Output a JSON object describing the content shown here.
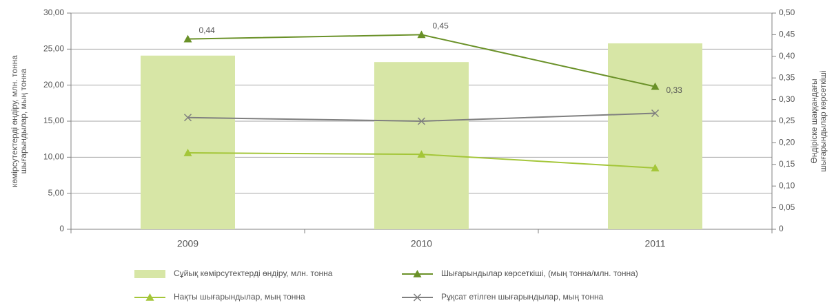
{
  "chart_data": {
    "type": "bar",
    "categories": [
      "2009",
      "2010",
      "2011"
    ],
    "ylabel": [
      "көмірсутектерді өндіру, млн. тонна",
      "шығарындылар, мың тонна"
    ],
    "y2label": [
      "Өндіріске шаққандағы",
      "шығарындылар көрсеткіші"
    ],
    "ylim": [
      0,
      30
    ],
    "yticks": [
      0,
      {
        "value": 5,
        "label": "5,00"
      },
      {
        "value": 10,
        "label": "10,00"
      },
      {
        "value": 15,
        "label": "15,00"
      },
      {
        "value": 20,
        "label": "20,00"
      },
      {
        "value": 25,
        "label": "25,00"
      },
      {
        "value": 30,
        "label": "30,00"
      }
    ],
    "y2lim": [
      0,
      0.5
    ],
    "y2ticks": [
      0,
      {
        "value": 0.05,
        "label": "0,05"
      },
      {
        "value": 0.1,
        "label": "0,10"
      },
      {
        "value": 0.15,
        "label": "0,15"
      },
      {
        "value": 0.2,
        "label": "0,20"
      },
      {
        "value": 0.25,
        "label": "0,25"
      },
      {
        "value": 0.3,
        "label": "0,30"
      },
      {
        "value": 0.35,
        "label": "0,35"
      },
      {
        "value": 0.4,
        "label": "0,40"
      },
      {
        "value": 0.45,
        "label": "0,45"
      },
      {
        "value": 0.5,
        "label": "0,50"
      }
    ],
    "grid": true,
    "legend": "bottom",
    "series": [
      {
        "name": "Сұйық көмірсутектерді өндіру, млн. тонна",
        "type": "bar",
        "color": "#d7e6a6",
        "values": [
          24.1,
          23.2,
          25.8
        ]
      },
      {
        "name": "Шығарындылар көрсеткіші, (мың тонна/млн. тонна)",
        "type": "line",
        "marker": "triangle",
        "axis": "y2",
        "color": "#6a9128",
        "values": [
          0.44,
          0.45,
          0.33
        ],
        "value_labels": [
          "0,44",
          "0,45",
          "0,33"
        ]
      },
      {
        "name": "Нақты шығарындылар, мың тонна",
        "type": "line",
        "marker": "triangle",
        "color": "#a4c639",
        "values": [
          10.6,
          10.4,
          8.5
        ]
      },
      {
        "name": "Рұқсат етілген шығарындылар, мың тонна",
        "type": "line",
        "marker": "x",
        "color": "#7f7f7f",
        "values": [
          15.5,
          15.0,
          16.1
        ]
      }
    ]
  }
}
